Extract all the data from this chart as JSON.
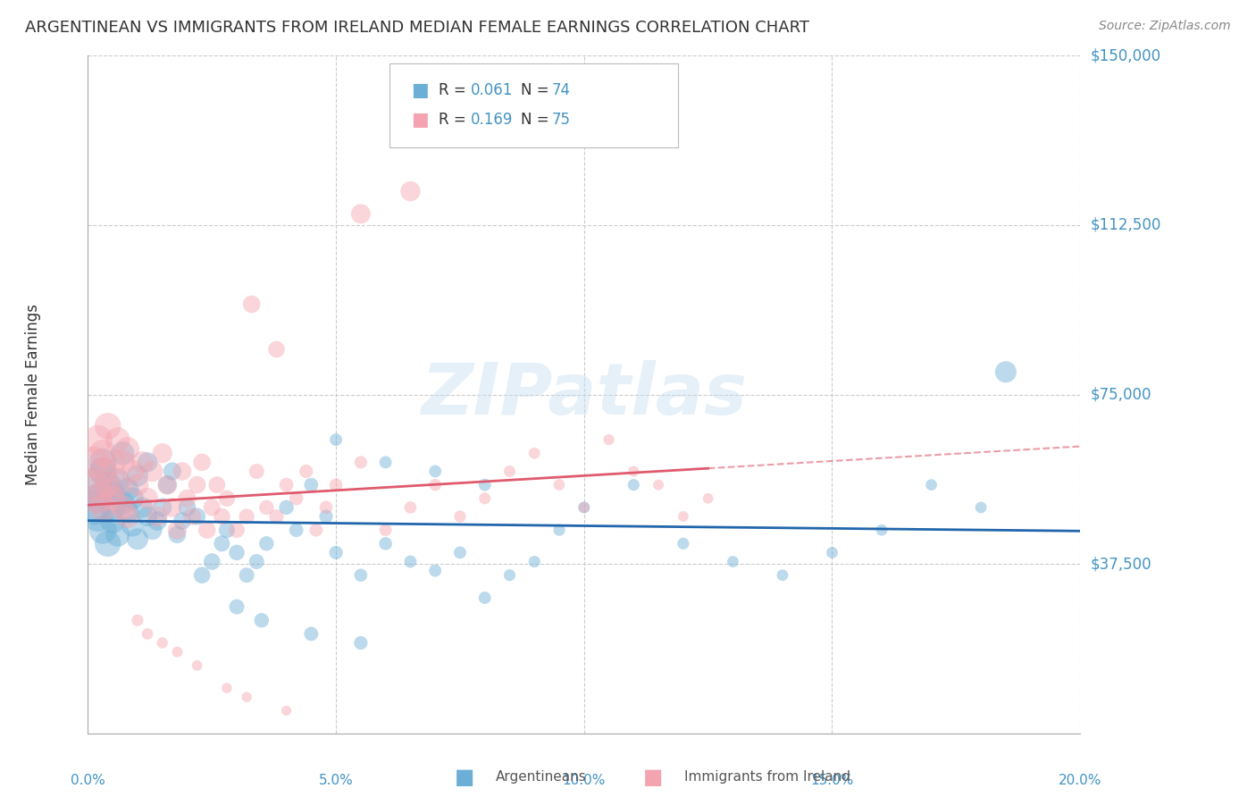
{
  "title": "ARGENTINEAN VS IMMIGRANTS FROM IRELAND MEDIAN FEMALE EARNINGS CORRELATION CHART",
  "source": "Source: ZipAtlas.com",
  "ylabel": "Median Female Earnings",
  "xlim": [
    0.0,
    0.2
  ],
  "ylim": [
    0,
    150000
  ],
  "ytick_vals": [
    37500,
    75000,
    112500,
    150000
  ],
  "ytick_labels": [
    "$37,500",
    "$75,000",
    "$112,500",
    "$150,000"
  ],
  "xtick_vals": [
    0.0,
    0.05,
    0.1,
    0.15,
    0.2
  ],
  "xtick_labels": [
    "0.0%",
    "5.0%",
    "10.0%",
    "15.0%",
    "20.0%"
  ],
  "watermark": "ZIPatlas",
  "legend_series1_R": "0.061",
  "legend_series1_N": "74",
  "legend_series2_R": "0.169",
  "legend_series2_N": "75",
  "series1_label": "Argentineans",
  "series2_label": "Immigrants from Ireland",
  "blue_color": "#6baed6",
  "pink_color": "#f4a4b0",
  "blue_line_color": "#2166ac",
  "pink_line_color": "#e05a6e",
  "grid_color": "#cccccc",
  "tick_label_color": "#4393c3",
  "title_color": "#333333",
  "source_color": "#888888",
  "arg_x": [
    0.001,
    0.001,
    0.002,
    0.002,
    0.003,
    0.003,
    0.003,
    0.004,
    0.004,
    0.005,
    0.005,
    0.005,
    0.006,
    0.006,
    0.007,
    0.007,
    0.008,
    0.008,
    0.009,
    0.009,
    0.01,
    0.01,
    0.011,
    0.012,
    0.012,
    0.013,
    0.014,
    0.015,
    0.016,
    0.017,
    0.018,
    0.019,
    0.02,
    0.022,
    0.023,
    0.025,
    0.027,
    0.028,
    0.03,
    0.032,
    0.034,
    0.036,
    0.04,
    0.042,
    0.045,
    0.048,
    0.05,
    0.055,
    0.06,
    0.065,
    0.07,
    0.075,
    0.08,
    0.085,
    0.09,
    0.095,
    0.1,
    0.11,
    0.12,
    0.13,
    0.14,
    0.15,
    0.16,
    0.17,
    0.18,
    0.185,
    0.05,
    0.06,
    0.07,
    0.08,
    0.03,
    0.035,
    0.045,
    0.055
  ],
  "arg_y": [
    50000,
    55000,
    48000,
    52000,
    45000,
    58000,
    60000,
    42000,
    55000,
    50000,
    47000,
    53000,
    56000,
    44000,
    62000,
    51000,
    49000,
    54000,
    46000,
    52000,
    57000,
    43000,
    50000,
    48000,
    60000,
    45000,
    47000,
    50000,
    55000,
    58000,
    44000,
    47000,
    50000,
    48000,
    35000,
    38000,
    42000,
    45000,
    40000,
    35000,
    38000,
    42000,
    50000,
    45000,
    55000,
    48000,
    40000,
    35000,
    42000,
    38000,
    36000,
    40000,
    30000,
    35000,
    38000,
    45000,
    50000,
    55000,
    42000,
    38000,
    35000,
    40000,
    45000,
    55000,
    50000,
    80000,
    65000,
    60000,
    58000,
    55000,
    28000,
    25000,
    22000,
    20000
  ],
  "arg_sizes": [
    800,
    700,
    600,
    550,
    500,
    500,
    500,
    450,
    450,
    420,
    400,
    400,
    380,
    380,
    360,
    360,
    340,
    340,
    320,
    320,
    300,
    300,
    280,
    260,
    260,
    250,
    240,
    230,
    220,
    210,
    200,
    200,
    200,
    190,
    180,
    180,
    170,
    170,
    160,
    150,
    150,
    140,
    140,
    130,
    130,
    120,
    120,
    110,
    110,
    100,
    100,
    100,
    100,
    90,
    90,
    90,
    90,
    90,
    90,
    85,
    85,
    85,
    85,
    85,
    85,
    300,
    100,
    100,
    100,
    100,
    150,
    140,
    130,
    120
  ],
  "ire_x": [
    0.001,
    0.001,
    0.002,
    0.002,
    0.003,
    0.003,
    0.003,
    0.004,
    0.004,
    0.005,
    0.005,
    0.006,
    0.006,
    0.007,
    0.007,
    0.008,
    0.008,
    0.009,
    0.01,
    0.011,
    0.012,
    0.013,
    0.014,
    0.015,
    0.016,
    0.017,
    0.018,
    0.019,
    0.02,
    0.021,
    0.022,
    0.023,
    0.024,
    0.025,
    0.026,
    0.027,
    0.028,
    0.03,
    0.032,
    0.034,
    0.036,
    0.038,
    0.04,
    0.042,
    0.044,
    0.046,
    0.048,
    0.05,
    0.055,
    0.06,
    0.065,
    0.07,
    0.075,
    0.08,
    0.085,
    0.09,
    0.095,
    0.1,
    0.105,
    0.11,
    0.115,
    0.12,
    0.125,
    0.033,
    0.038,
    0.055,
    0.065,
    0.01,
    0.012,
    0.015,
    0.018,
    0.022,
    0.028,
    0.032,
    0.04
  ],
  "ire_y": [
    55000,
    60000,
    52000,
    65000,
    58000,
    50000,
    62000,
    55000,
    68000,
    60000,
    52000,
    65000,
    55000,
    60000,
    50000,
    63000,
    48000,
    58000,
    55000,
    60000,
    52000,
    58000,
    48000,
    62000,
    55000,
    50000,
    45000,
    58000,
    52000,
    48000,
    55000,
    60000,
    45000,
    50000,
    55000,
    48000,
    52000,
    45000,
    48000,
    58000,
    50000,
    48000,
    55000,
    52000,
    58000,
    45000,
    50000,
    55000,
    60000,
    45000,
    50000,
    55000,
    48000,
    52000,
    58000,
    62000,
    55000,
    50000,
    65000,
    58000,
    55000,
    48000,
    52000,
    95000,
    85000,
    115000,
    120000,
    25000,
    22000,
    20000,
    18000,
    15000,
    10000,
    8000,
    5000
  ],
  "ire_sizes": [
    700,
    650,
    580,
    550,
    500,
    500,
    480,
    460,
    460,
    430,
    420,
    400,
    400,
    380,
    380,
    360,
    350,
    340,
    320,
    310,
    300,
    290,
    270,
    260,
    250,
    240,
    230,
    220,
    210,
    205,
    200,
    200,
    195,
    190,
    185,
    180,
    175,
    165,
    155,
    148,
    140,
    135,
    130,
    125,
    120,
    115,
    112,
    108,
    105,
    100,
    98,
    95,
    92,
    90,
    88,
    85,
    83,
    80,
    78,
    76,
    75,
    73,
    72,
    200,
    180,
    250,
    260,
    90,
    85,
    80,
    75,
    72,
    70,
    68,
    65
  ]
}
